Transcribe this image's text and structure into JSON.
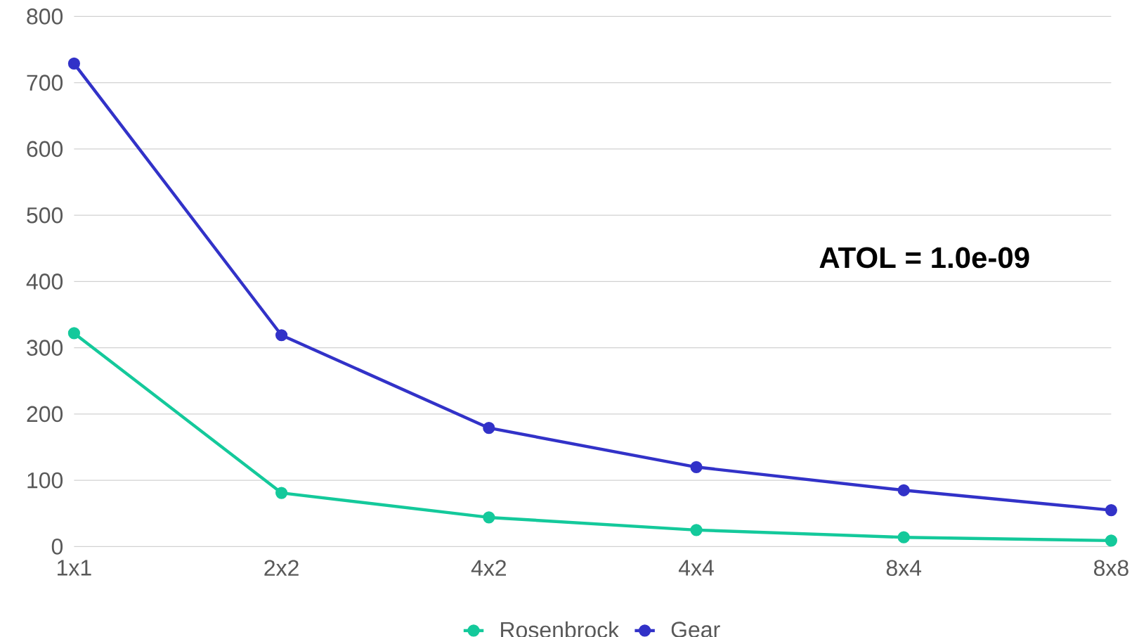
{
  "chart_data": {
    "type": "line",
    "categories": [
      "1x1",
      "2x2",
      "4x2",
      "4x4",
      "8x4",
      "8x8"
    ],
    "series": [
      {
        "name": "Rosenbrock",
        "color": "#14c99b",
        "values": [
          322,
          81,
          44,
          25,
          14,
          9
        ]
      },
      {
        "name": "Gear",
        "color": "#3232c8",
        "values": [
          729,
          319,
          179,
          120,
          85,
          55
        ]
      }
    ],
    "ylim": [
      0,
      800
    ],
    "yticks": [
      0,
      100,
      200,
      300,
      400,
      500,
      600,
      700,
      800
    ],
    "grid": "y",
    "legend": "bottom",
    "marker": "circle",
    "line_style": "solid",
    "annotations": [
      "**ATOL = 1.0e-09**"
    ]
  }
}
